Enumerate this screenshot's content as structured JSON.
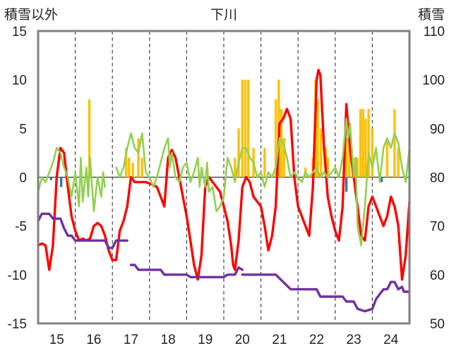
{
  "chart_data": {
    "type": "line",
    "title": "下川",
    "left_axis_label": "積雪以外",
    "right_axis_label": "積雪",
    "x_categories": [
      "15",
      "16",
      "17",
      "18",
      "19",
      "20",
      "21",
      "22",
      "23",
      "24"
    ],
    "x_range": [
      14.5,
      24.5
    ],
    "left_ylim": [
      -15,
      15
    ],
    "left_yticks": [
      "15",
      "10",
      "5",
      "0",
      "-5",
      "-10",
      "-15"
    ],
    "right_ylim": [
      50,
      110
    ],
    "right_yticks": [
      "110",
      "100",
      "90",
      "80",
      "70",
      "60",
      "50"
    ],
    "grid": "dashed vertical at each day boundary",
    "colors": {
      "precip_bar": "#ffc000",
      "negative_bar": "#2e75b6",
      "temperature": "#ff0000",
      "green_series": "#92d050",
      "snow_depth": "#7030a0",
      "frame": "#808080"
    },
    "bars": [
      {
        "x": 14.85,
        "v": -0.3,
        "c": "neg"
      },
      {
        "x": 15.12,
        "v": -1.0,
        "c": "neg"
      },
      {
        "x": 15.88,
        "v": 8.0
      },
      {
        "x": 16.87,
        "v": 3.0
      },
      {
        "x": 16.95,
        "v": 2.0
      },
      {
        "x": 17.05,
        "v": 1.5
      },
      {
        "x": 17.2,
        "v": 4.0
      },
      {
        "x": 17.3,
        "v": 2.0
      },
      {
        "x": 19.8,
        "v": 2.0
      },
      {
        "x": 19.9,
        "v": 5.0
      },
      {
        "x": 20.0,
        "v": 10.0
      },
      {
        "x": 20.08,
        "v": 10.0
      },
      {
        "x": 20.16,
        "v": 10.0
      },
      {
        "x": 20.3,
        "v": 3.0
      },
      {
        "x": 20.6,
        "v": 3.0
      },
      {
        "x": 20.9,
        "v": 8.0
      },
      {
        "x": 20.98,
        "v": 10.0
      },
      {
        "x": 21.05,
        "v": 7.0
      },
      {
        "x": 21.12,
        "v": 4.0
      },
      {
        "x": 21.7,
        "v": 1.0
      },
      {
        "x": 22.3,
        "v": 2.0
      },
      {
        "x": 21.9,
        "v": 2.0
      },
      {
        "x": 21.97,
        "v": 10.0
      },
      {
        "x": 22.03,
        "v": 8.0
      },
      {
        "x": 22.12,
        "v": 5.0
      },
      {
        "x": 22.25,
        "v": 3.0
      },
      {
        "x": 22.8,
        "v": 4.0
      },
      {
        "x": 22.88,
        "v": 4.0
      },
      {
        "x": 22.97,
        "v": 2.0
      },
      {
        "x": 23.04,
        "v": 2.0
      },
      {
        "x": 23.1,
        "v": 2.0
      },
      {
        "x": 23.18,
        "v": 7.0
      },
      {
        "x": 23.25,
        "v": 7.0
      },
      {
        "x": 23.32,
        "v": 6.0
      },
      {
        "x": 23.4,
        "v": 7.0
      },
      {
        "x": 23.5,
        "v": 5.0
      },
      {
        "x": 23.9,
        "v": 4.0
      },
      {
        "x": 24.1,
        "v": 7.0
      },
      {
        "x": 24.2,
        "v": 3.0
      },
      {
        "x": 22.8,
        "v": -1.5,
        "c": "neg"
      },
      {
        "x": 23.75,
        "v": -0.5,
        "c": "neg"
      }
    ],
    "series": [
      {
        "name": "temperature",
        "color_key": "temperature",
        "axis": "left",
        "points": [
          [
            14.5,
            -7
          ],
          [
            14.6,
            -6.8
          ],
          [
            14.7,
            -7
          ],
          [
            14.8,
            -9.5
          ],
          [
            14.9,
            -7
          ],
          [
            15.0,
            0
          ],
          [
            15.1,
            3
          ],
          [
            15.2,
            2.5
          ],
          [
            15.3,
            -1
          ],
          [
            15.4,
            -4
          ],
          [
            15.5,
            -5.5
          ],
          [
            15.6,
            -6.5
          ],
          [
            15.7,
            -6.3
          ],
          [
            15.8,
            -6.5
          ],
          [
            15.9,
            -6.3
          ],
          [
            16.0,
            -5
          ],
          [
            16.1,
            -4.7
          ],
          [
            16.2,
            -5
          ],
          [
            16.3,
            -6
          ],
          [
            16.4,
            -7.5
          ],
          [
            16.5,
            -8.5
          ],
          [
            16.6,
            -8.5
          ],
          [
            16.7,
            -5.5
          ],
          [
            16.8,
            -4.5
          ],
          [
            16.9,
            -3
          ],
          [
            17.0,
            0
          ],
          [
            17.1,
            -0.5
          ],
          [
            17.2,
            -0.5
          ],
          [
            17.4,
            -0.5
          ],
          [
            17.6,
            -0.8
          ],
          [
            17.7,
            -1
          ],
          [
            17.8,
            -2
          ],
          [
            17.9,
            -3
          ],
          [
            18.0,
            2
          ],
          [
            18.1,
            2.8
          ],
          [
            18.2,
            2
          ],
          [
            18.3,
            0
          ],
          [
            18.4,
            -2
          ],
          [
            18.5,
            -4
          ],
          [
            18.6,
            -6.5
          ],
          [
            18.7,
            -9
          ],
          [
            18.8,
            -10.5
          ],
          [
            18.9,
            -8
          ],
          [
            19.0,
            -1
          ],
          [
            19.1,
            0
          ],
          [
            19.2,
            -0.5
          ],
          [
            19.3,
            -1
          ],
          [
            19.4,
            -1.5
          ],
          [
            19.5,
            -3
          ],
          [
            19.6,
            -4.5
          ],
          [
            19.7,
            -7
          ],
          [
            19.75,
            -9
          ],
          [
            19.8,
            -9.5
          ],
          [
            19.9,
            -6.5
          ],
          [
            20.0,
            -1
          ],
          [
            20.1,
            0
          ],
          [
            20.2,
            -0.5
          ],
          [
            20.3,
            -2
          ],
          [
            20.4,
            -2.5
          ],
          [
            20.5,
            -3
          ],
          [
            20.6,
            -5
          ],
          [
            20.7,
            -7.5
          ],
          [
            20.8,
            -6
          ],
          [
            20.9,
            -3
          ],
          [
            21.0,
            5.5
          ],
          [
            21.1,
            6
          ],
          [
            21.2,
            7
          ],
          [
            21.3,
            6
          ],
          [
            21.4,
            0
          ],
          [
            21.5,
            -3
          ],
          [
            21.6,
            -4
          ],
          [
            21.7,
            -5
          ],
          [
            21.8,
            -6
          ],
          [
            21.9,
            -1
          ],
          [
            22.0,
            10
          ],
          [
            22.05,
            11
          ],
          [
            22.1,
            10.5
          ],
          [
            22.2,
            3
          ],
          [
            22.3,
            -2
          ],
          [
            22.4,
            -4
          ],
          [
            22.5,
            -5.5
          ],
          [
            22.6,
            -6.5
          ],
          [
            22.7,
            -3
          ],
          [
            22.8,
            7.5
          ],
          [
            22.9,
            3
          ],
          [
            23.0,
            0
          ],
          [
            23.1,
            -3
          ],
          [
            23.2,
            -6
          ],
          [
            23.3,
            -6.5
          ],
          [
            23.4,
            -3
          ],
          [
            23.5,
            -2
          ],
          [
            23.6,
            -3
          ],
          [
            23.7,
            -4
          ],
          [
            23.8,
            -5
          ],
          [
            23.9,
            -4
          ],
          [
            24.0,
            -2
          ],
          [
            24.1,
            -3
          ],
          [
            24.2,
            -5
          ],
          [
            24.3,
            -10.5
          ],
          [
            24.4,
            -8
          ],
          [
            24.5,
            -2.5
          ]
        ]
      },
      {
        "name": "green_series",
        "color_key": "green_series",
        "axis": "left",
        "segments": [
          [
            [
              14.5,
              -1.5
            ],
            [
              14.6,
              0
            ],
            [
              14.7,
              -0.5
            ],
            [
              14.8,
              0.5
            ],
            [
              14.9,
              1.5
            ],
            [
              15.0,
              3
            ],
            [
              15.1,
              2.5
            ],
            [
              15.2,
              1
            ],
            [
              15.3,
              0
            ],
            [
              15.4,
              -2
            ],
            [
              15.5,
              0.5
            ],
            [
              15.6,
              -3
            ],
            [
              15.65,
              2
            ],
            [
              15.7,
              -2.5
            ],
            [
              15.8,
              1
            ],
            [
              15.85,
              -2
            ],
            [
              15.9,
              2
            ],
            [
              16.0,
              -3.5
            ],
            [
              16.1,
              0
            ],
            [
              16.2,
              -2
            ],
            [
              16.25,
              0.5
            ],
            [
              16.3,
              -1
            ]
          ],
          [
            [
              16.6,
              1
            ],
            [
              16.7,
              0
            ],
            [
              16.8,
              1
            ],
            [
              16.9,
              3
            ],
            [
              17.0,
              4.5
            ],
            [
              17.1,
              3
            ],
            [
              17.2,
              2.5
            ],
            [
              17.3,
              4.5
            ],
            [
              17.4,
              0.5
            ],
            [
              17.5,
              0
            ],
            [
              17.6,
              -1
            ],
            [
              17.7,
              0
            ],
            [
              17.8,
              1.5
            ],
            [
              17.9,
              3
            ],
            [
              18.0,
              4
            ],
            [
              18.05,
              1
            ],
            [
              18.1,
              2.5
            ],
            [
              18.2,
              0
            ],
            [
              18.3,
              -0.5
            ],
            [
              18.4,
              1
            ],
            [
              18.5,
              1.5
            ],
            [
              18.6,
              -0.5
            ],
            [
              18.7,
              0.5
            ],
            [
              18.8,
              2
            ],
            [
              18.85,
              -1
            ],
            [
              18.9,
              1
            ],
            [
              19.0,
              -1
            ],
            [
              19.05,
              1.5
            ],
            [
              19.1,
              -1.5
            ],
            [
              19.2,
              -1
            ],
            [
              19.3,
              -3.5
            ],
            [
              19.4,
              -3
            ],
            [
              19.5,
              -2
            ],
            [
              19.6,
              2
            ],
            [
              19.7,
              1
            ],
            [
              19.8,
              -0.5
            ],
            [
              19.9,
              1.5
            ],
            [
              20.0,
              3
            ],
            [
              20.1,
              3
            ],
            [
              20.2,
              2
            ],
            [
              20.3,
              1.5
            ],
            [
              20.4,
              0
            ],
            [
              20.5,
              0.5
            ],
            [
              20.6,
              -1
            ],
            [
              20.7,
              0.5
            ],
            [
              20.8,
              0
            ],
            [
              20.9,
              1
            ],
            [
              21.0,
              4
            ],
            [
              21.1,
              3.5
            ],
            [
              21.2,
              2
            ],
            [
              21.3,
              0
            ],
            [
              21.4,
              0.5
            ],
            [
              21.5,
              0
            ],
            [
              21.6,
              -0.5
            ],
            [
              21.7,
              0.5
            ],
            [
              21.8,
              0
            ],
            [
              21.9,
              0.5
            ],
            [
              22.0,
              1
            ],
            [
              22.1,
              0
            ],
            [
              22.2,
              0.5
            ],
            [
              22.3,
              0
            ],
            [
              22.4,
              0.5
            ],
            [
              22.5,
              1
            ],
            [
              22.6,
              0
            ],
            [
              22.7,
              2
            ],
            [
              22.8,
              6
            ],
            [
              22.85,
              4
            ],
            [
              22.9,
              5.5
            ],
            [
              23.0,
              0
            ],
            [
              23.05,
              2
            ],
            [
              23.1,
              -5
            ],
            [
              23.2,
              -7
            ],
            [
              23.3,
              -3
            ],
            [
              23.4,
              2.5
            ],
            [
              23.5,
              1
            ],
            [
              23.6,
              3
            ],
            [
              23.7,
              -0.5
            ],
            [
              23.8,
              3
            ],
            [
              23.9,
              4
            ],
            [
              24.0,
              3
            ],
            [
              24.1,
              4.5
            ],
            [
              24.2,
              3.5
            ],
            [
              24.3,
              1
            ],
            [
              24.4,
              -0.5
            ],
            [
              24.5,
              3
            ]
          ]
        ]
      },
      {
        "name": "snow_depth",
        "color_key": "snow_depth",
        "axis": "right",
        "segments": [
          [
            [
              14.5,
              71
            ],
            [
              14.6,
              72.5
            ],
            [
              14.8,
              72.5
            ],
            [
              14.9,
              71.5
            ],
            [
              15.1,
              71.5
            ],
            [
              15.2,
              69.5
            ],
            [
              15.3,
              68
            ],
            [
              15.4,
              68
            ],
            [
              15.5,
              67
            ],
            [
              16.0,
              67
            ],
            [
              16.3,
              67
            ],
            [
              16.4,
              65.5
            ],
            [
              16.5,
              65.5
            ],
            [
              16.6,
              67
            ],
            [
              16.9,
              67
            ]
          ],
          [
            [
              17.0,
              62
            ],
            [
              17.1,
              62
            ],
            [
              17.2,
              61
            ],
            [
              17.8,
              61
            ],
            [
              17.9,
              60
            ],
            [
              18.5,
              60
            ],
            [
              18.6,
              59.5
            ],
            [
              19.5,
              59.5
            ],
            [
              19.6,
              60
            ],
            [
              19.8,
              60
            ],
            [
              19.9,
              61.5
            ],
            [
              20.0,
              61
            ]
          ],
          [
            [
              20.0,
              60
            ],
            [
              20.9,
              60
            ],
            [
              21.1,
              58.5
            ],
            [
              21.3,
              57
            ],
            [
              22.0,
              57
            ],
            [
              22.1,
              55.5
            ],
            [
              22.7,
              55.5
            ],
            [
              22.8,
              54.5
            ],
            [
              23.0,
              54.5
            ],
            [
              23.1,
              53
            ],
            [
              23.3,
              52.5
            ],
            [
              23.5,
              53
            ],
            [
              23.6,
              55
            ],
            [
              23.8,
              57
            ],
            [
              23.9,
              57
            ],
            [
              24.0,
              58.5
            ],
            [
              24.1,
              58.5
            ],
            [
              24.2,
              57
            ],
            [
              24.3,
              57.5
            ],
            [
              24.35,
              56.5
            ],
            [
              24.5,
              56.5
            ]
          ]
        ]
      }
    ]
  }
}
